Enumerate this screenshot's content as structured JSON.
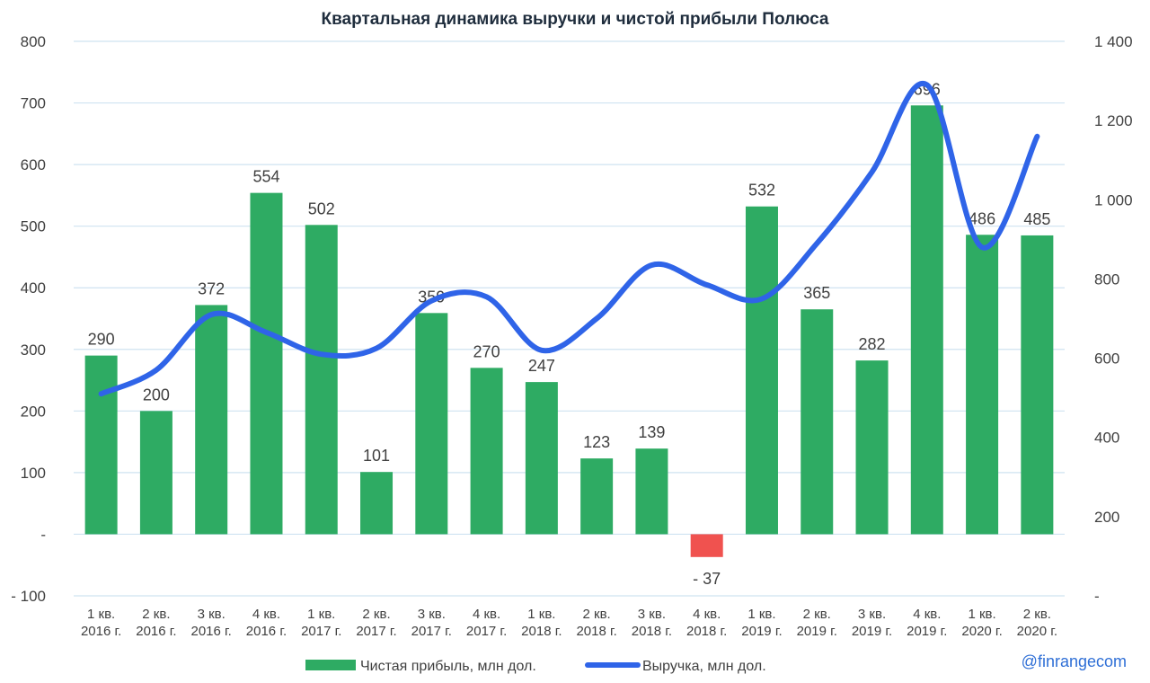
{
  "chart_data": {
    "type": "bar",
    "title": "Квартальная динамика выручки и чистой прибыли Полюса",
    "watermark": "@finrangecom",
    "categories": [
      [
        "1 кв.",
        "2016 г."
      ],
      [
        "2 кв.",
        "2016 г."
      ],
      [
        "3 кв.",
        "2016 г."
      ],
      [
        "4 кв.",
        "2016 г."
      ],
      [
        "1 кв.",
        "2017 г."
      ],
      [
        "2 кв.",
        "2017 г."
      ],
      [
        "3 кв.",
        "2017 г."
      ],
      [
        "4 кв.",
        "2017 г."
      ],
      [
        "1 кв.",
        "2018 г."
      ],
      [
        "2 кв.",
        "2018 г."
      ],
      [
        "3 кв.",
        "2018 г."
      ],
      [
        "4 кв.",
        "2018 г."
      ],
      [
        "1 кв.",
        "2019 г."
      ],
      [
        "2 кв.",
        "2019 г."
      ],
      [
        "3 кв.",
        "2019 г."
      ],
      [
        "4 кв.",
        "2019 г."
      ],
      [
        "1 кв.",
        "2020 г."
      ],
      [
        "2 кв.",
        "2020 г."
      ]
    ],
    "series": [
      {
        "name": "Чистая прибыль, млн дол.",
        "type": "bar",
        "axis": "left",
        "color": "#2eab63",
        "negative_color": "#f0524f",
        "values": [
          290,
          200,
          372,
          554,
          502,
          101,
          359,
          270,
          247,
          123,
          139,
          -37,
          532,
          365,
          282,
          696,
          486,
          485
        ],
        "labels": [
          "290",
          "200",
          "372",
          "554",
          "502",
          "101",
          "359",
          "270",
          "247",
          "123",
          "139",
          "- 37",
          "532",
          "365",
          "282",
          "696",
          "486",
          "485"
        ]
      },
      {
        "name": "Выручка, млн дол.",
        "type": "line",
        "axis": "right",
        "color": "#2f64e8",
        "smooth": true,
        "values": [
          510,
          570,
          710,
          665,
          610,
          625,
          745,
          755,
          620,
          700,
          835,
          785,
          750,
          890,
          1070,
          1290,
          880,
          1160
        ]
      }
    ],
    "y_left": {
      "range": [
        -100,
        800
      ],
      "ticks": [
        -100,
        0,
        100,
        200,
        300,
        400,
        500,
        600,
        700,
        800
      ],
      "tick_labels": [
        "- 100",
        "-",
        "100",
        "200",
        "300",
        "400",
        "500",
        "600",
        "700",
        "800"
      ]
    },
    "y_right": {
      "range": [
        0,
        1400
      ],
      "ticks": [
        0,
        200,
        400,
        600,
        800,
        1000,
        1200,
        1400
      ],
      "tick_labels": [
        "-",
        "200",
        "400",
        "600",
        "800",
        "1 000",
        "1 200",
        "1 400"
      ]
    },
    "grid": true,
    "legend_position": "bottom"
  }
}
